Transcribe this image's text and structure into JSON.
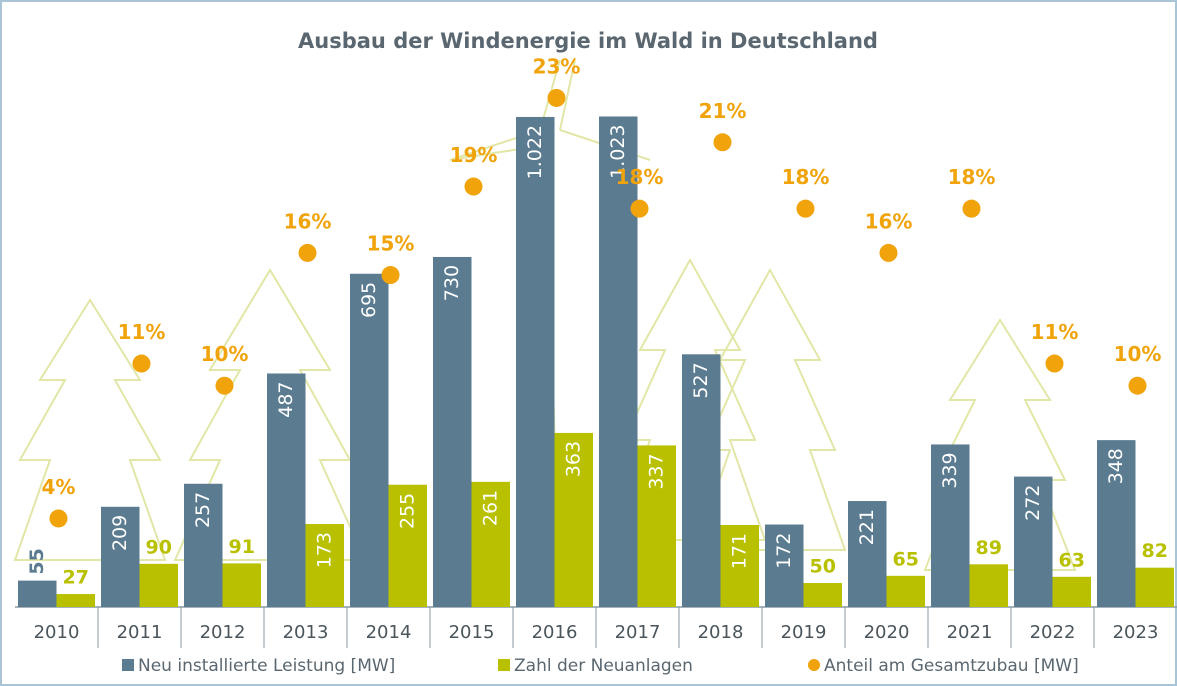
{
  "chart_data": {
    "type": "bar",
    "title": "Ausbau der Windenergie im Wald in Deutschland",
    "categories": [
      "2010",
      "2011",
      "2012",
      "2013",
      "2014",
      "2015",
      "2016",
      "2017",
      "2018",
      "2019",
      "2020",
      "2021",
      "2022",
      "2023"
    ],
    "series": [
      {
        "name": "Neu installierte Leistung [MW]",
        "color": "#5b7b91",
        "values": [
          55,
          209,
          257,
          487,
          695,
          730,
          1022,
          1023,
          527,
          172,
          221,
          339,
          272,
          348
        ],
        "value_labels": [
          "55",
          "209",
          "257",
          "487",
          "695",
          "730",
          "1.022",
          "1.023",
          "527",
          "172",
          "221",
          "339",
          "272",
          "348"
        ]
      },
      {
        "name": "Zahl der Neuanlagen",
        "color": "#b8c000",
        "values": [
          27,
          90,
          91,
          173,
          255,
          261,
          363,
          337,
          171,
          50,
          65,
          89,
          63,
          82
        ]
      },
      {
        "name": "Anteil am Gesamtzubau [MW]",
        "color": "#f0a30a",
        "type": "scatter",
        "axis": "y2",
        "values": [
          4,
          11,
          10,
          16,
          15,
          19,
          23,
          18,
          21,
          18,
          16,
          18,
          11,
          10
        ],
        "value_labels": [
          "4%",
          "11%",
          "10%",
          "16%",
          "15%",
          "19%",
          "23%",
          "18%",
          "21%",
          "18%",
          "16%",
          "18%",
          "11%",
          "10%"
        ]
      }
    ],
    "ylim": [
      0,
      1200
    ],
    "y2lim": [
      0,
      26
    ],
    "legend": "bottom"
  }
}
